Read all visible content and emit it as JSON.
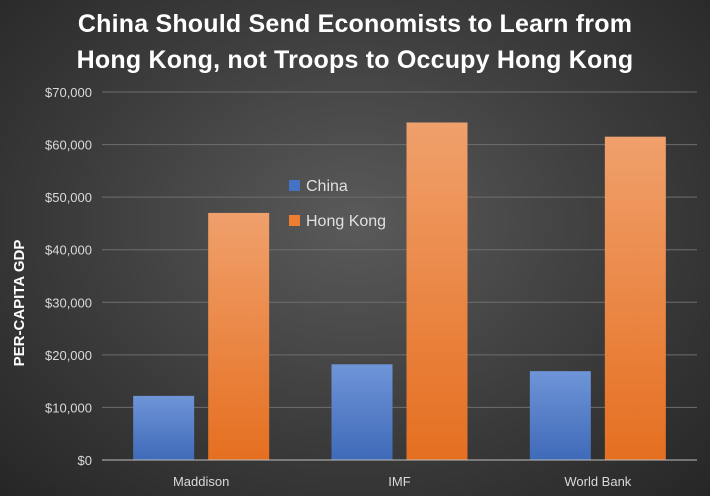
{
  "chart_data": {
    "type": "bar",
    "title_lines": [
      "China Should Send Economists to Learn from",
      "Hong Kong, not Troops to Occupy Hong Kong"
    ],
    "xlabel": "",
    "ylabel": "PER-CAPITA GDP",
    "ylim": [
      0,
      70000
    ],
    "yticks": [
      0,
      10000,
      20000,
      30000,
      40000,
      50000,
      60000,
      70000
    ],
    "ytick_labels": [
      "$0",
      "$10,000",
      "$20,000",
      "$30,000",
      "$40,000",
      "$50,000",
      "$60,000",
      "$70,000"
    ],
    "categories": [
      "Maddison",
      "IMF",
      "World Bank"
    ],
    "series": [
      {
        "name": "China",
        "values": [
          12200,
          18200,
          16900
        ],
        "color": "#4472c4"
      },
      {
        "name": "Hong Kong",
        "values": [
          47000,
          64200,
          61500
        ],
        "color": "#ed7d31"
      }
    ],
    "legend_position": "center",
    "grid": true
  }
}
